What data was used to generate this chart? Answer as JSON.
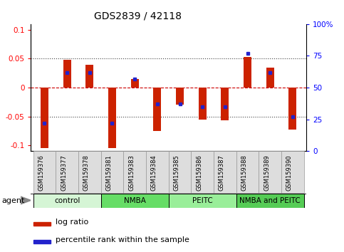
{
  "title": "GDS2839 / 42118",
  "samples": [
    "GSM159376",
    "GSM159377",
    "GSM159378",
    "GSM159381",
    "GSM159383",
    "GSM159384",
    "GSM159385",
    "GSM159386",
    "GSM159387",
    "GSM159388",
    "GSM159389",
    "GSM159390"
  ],
  "log_ratio": [
    -0.105,
    0.048,
    0.04,
    -0.105,
    0.015,
    -0.075,
    -0.03,
    -0.055,
    -0.056,
    0.053,
    0.035,
    -0.073
  ],
  "percentile_rank": [
    22,
    62,
    62,
    22,
    57,
    37,
    37,
    35,
    35,
    77,
    62,
    27
  ],
  "groups": [
    {
      "label": "control",
      "color": "#d5f5d5",
      "start": 0,
      "end": 3
    },
    {
      "label": "NMBA",
      "color": "#66dd66",
      "start": 3,
      "end": 6
    },
    {
      "label": "PEITC",
      "color": "#99ee99",
      "start": 6,
      "end": 9
    },
    {
      "label": "NMBA and PEITC",
      "color": "#55cc55",
      "start": 9,
      "end": 12
    }
  ],
  "ylim_left": [
    -0.11,
    0.11
  ],
  "ylim_right": [
    0,
    100
  ],
  "bar_color": "#cc2200",
  "percentile_color": "#2222cc",
  "zero_line_color": "#cc0000",
  "grid_color": "#000000",
  "agent_label": "agent",
  "legend_log": "log ratio",
  "legend_pct": "percentile rank within the sample",
  "bar_width": 0.35
}
